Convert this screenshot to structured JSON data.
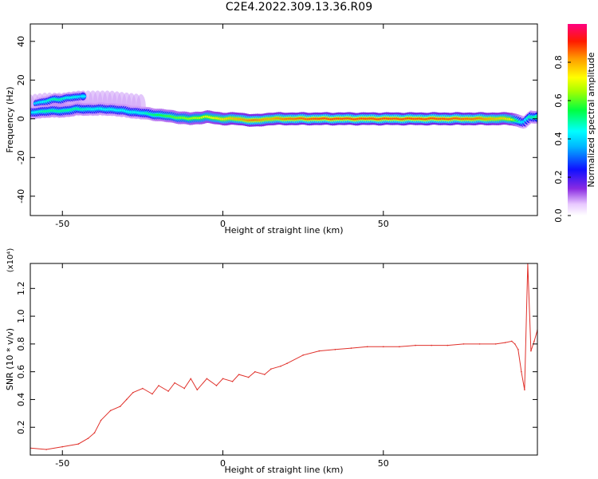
{
  "title": "C2E4.2022.309.13.36.R09",
  "colors": {
    "axis": "#000000",
    "snr_line": "#e0302a",
    "spectrogram_background": "#ffffff"
  },
  "chart_data": [
    {
      "type": "heatmap",
      "xlabel": "Height of straight line (km)",
      "ylabel": "Frequency (Hz)",
      "xlim": [
        -60,
        98
      ],
      "ylim": [
        -50,
        49
      ],
      "xticks": [
        "-50",
        "0",
        "50"
      ],
      "xtick_values": [
        -50,
        0,
        50
      ],
      "yticks": [
        "-40",
        "-20",
        "0",
        "20",
        "40"
      ],
      "ytick_values": [
        -40,
        -20,
        0,
        20,
        40
      ],
      "colorbar": {
        "label": "Normalized spectral amplitude",
        "range": [
          0,
          1
        ],
        "ticks": [
          "0.0",
          "0.2",
          "0.4",
          "0.6",
          "0.8"
        ],
        "tick_values": [
          0,
          0.2,
          0.4,
          0.6,
          0.8
        ],
        "colormap": "rainbow (white → violet → blue → cyan → green → yellow → orange → red → magenta)"
      },
      "ridge": {
        "description": "dominant spectral peak frequency vs height",
        "x": [
          -60,
          -55,
          -50,
          -45,
          -40,
          -35,
          -30,
          -25,
          -20,
          -15,
          -10,
          -5,
          0,
          5,
          10,
          15,
          20,
          30,
          40,
          50,
          60,
          70,
          80,
          90,
          92,
          94,
          96,
          98
        ],
        "frequency": [
          3,
          4,
          4,
          5,
          5,
          5,
          4,
          3,
          2,
          1,
          0,
          1,
          0,
          0,
          -1,
          0,
          0,
          0,
          0,
          0,
          0,
          0,
          0,
          0,
          -1,
          -2,
          1,
          1
        ],
        "amplitude": [
          0.4,
          0.5,
          0.5,
          0.5,
          0.45,
          0.45,
          0.45,
          0.45,
          0.55,
          0.6,
          0.65,
          0.7,
          0.75,
          0.8,
          0.85,
          0.8,
          0.85,
          0.88,
          0.88,
          0.88,
          0.88,
          0.88,
          0.85,
          0.75,
          0.55,
          0.4,
          0.5,
          0.5
        ]
      },
      "secondary_ridge": {
        "description": "upper branch below -40 km",
        "x": [
          -58,
          -55,
          -52,
          -50,
          -48,
          -45,
          -43
        ],
        "frequency": [
          8,
          9,
          10,
          10,
          11,
          11,
          12
        ],
        "amplitude": [
          0.4,
          0.45,
          0.5,
          0.5,
          0.45,
          0.45,
          0.4
        ]
      }
    },
    {
      "type": "line",
      "xlabel": "Height of straight line (km)",
      "ylabel": "SNR (10 * v/v)",
      "y_multiplier": "(x10⁴)",
      "xlim": [
        -60,
        98
      ],
      "ylim": [
        0,
        1.38
      ],
      "xticks": [
        "-50",
        "0",
        "50"
      ],
      "xtick_values": [
        -50,
        0,
        50
      ],
      "yticks": [
        "0.2",
        "0.4",
        "0.6",
        "0.8",
        "1.0",
        "1.2"
      ],
      "ytick_values": [
        0.2,
        0.4,
        0.6,
        0.8,
        1.0,
        1.2
      ],
      "series": [
        {
          "x": [
            -60,
            -55,
            -50,
            -45,
            -42,
            -40,
            -38,
            -35,
            -32,
            -30,
            -28,
            -25,
            -22,
            -20,
            -17,
            -15,
            -12,
            -10,
            -8,
            -5,
            -2,
            0,
            3,
            5,
            8,
            10,
            13,
            15,
            18,
            20,
            25,
            30,
            35,
            40,
            45,
            50,
            55,
            60,
            65,
            70,
            75,
            80,
            85,
            88,
            90,
            91,
            92,
            93,
            94,
            95,
            96,
            97,
            98
          ],
          "y": [
            0.05,
            0.04,
            0.06,
            0.08,
            0.12,
            0.16,
            0.25,
            0.32,
            0.35,
            0.4,
            0.45,
            0.48,
            0.44,
            0.5,
            0.46,
            0.52,
            0.48,
            0.55,
            0.47,
            0.55,
            0.5,
            0.55,
            0.53,
            0.58,
            0.56,
            0.6,
            0.58,
            0.62,
            0.64,
            0.66,
            0.72,
            0.75,
            0.76,
            0.77,
            0.78,
            0.78,
            0.78,
            0.79,
            0.79,
            0.79,
            0.8,
            0.8,
            0.8,
            0.81,
            0.82,
            0.8,
            0.76,
            0.6,
            0.47,
            1.38,
            0.75,
            0.82,
            0.9
          ]
        }
      ]
    }
  ]
}
